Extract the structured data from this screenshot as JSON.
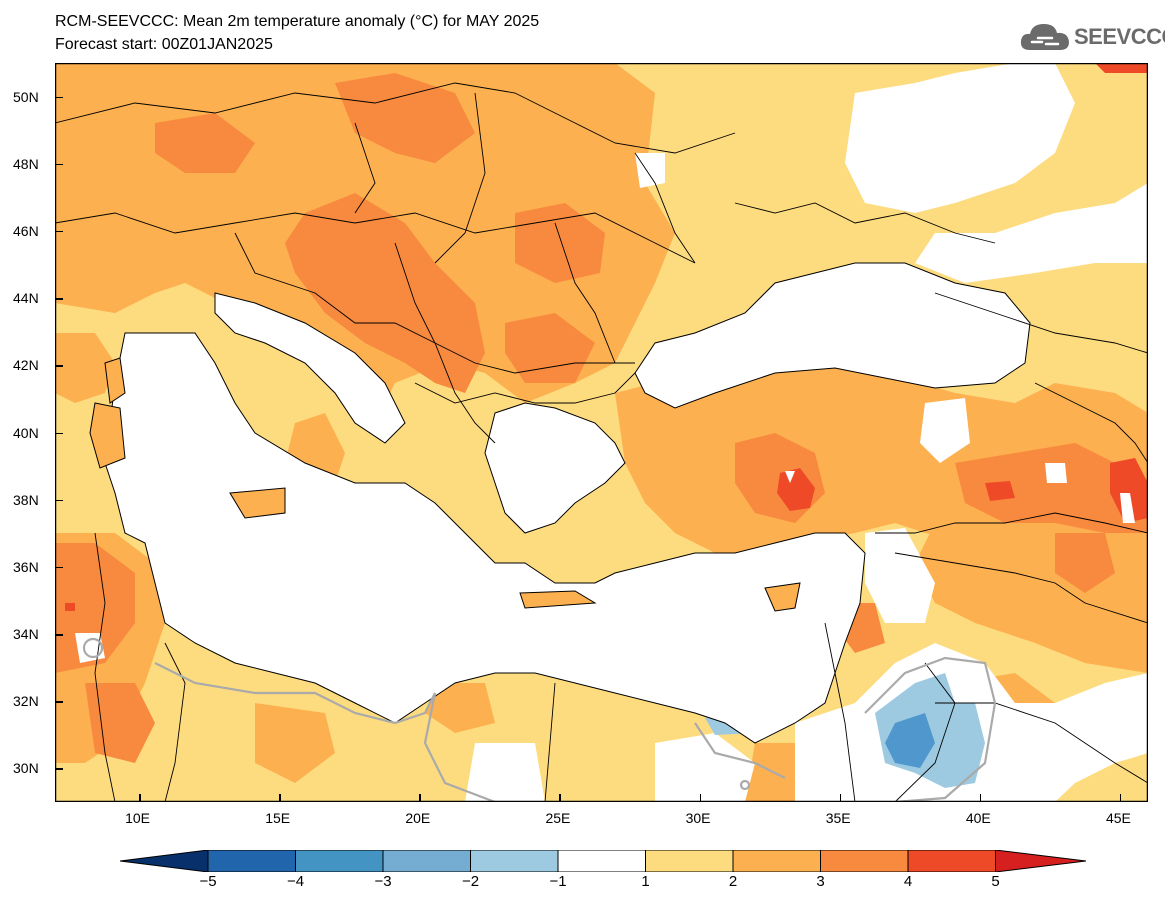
{
  "header": {
    "title": "RCM-SEEVCCC: Mean 2m temperature anomaly (°C) for MAY 2025",
    "subtitle": "Forecast start: 00Z01JAN2025"
  },
  "logo": {
    "text": "SEEVCCC",
    "icon": "cloud-icon"
  },
  "map": {
    "lon_range": [
      7,
      46
    ],
    "lat_range": [
      29,
      51
    ],
    "lat_ticks": [
      "50N",
      "48N",
      "46N",
      "44N",
      "42N",
      "40N",
      "38N",
      "36N",
      "34N",
      "32N",
      "30N"
    ],
    "lon_ticks": [
      "10E",
      "15E",
      "20E",
      "25E",
      "30E",
      "35E",
      "40E",
      "45E"
    ],
    "colors": {
      "land_anomaly_1_2": "#fddb7f",
      "land_anomaly_2_3": "#fdb04f",
      "land_anomaly_3_4": "#f78a3f",
      "land_anomaly_4_5": "#ef4a28",
      "negative_anomaly": "#9ecae3",
      "negative_anomaly_strong": "#4f97cc",
      "sea": "#ffffff",
      "borders": "#000000",
      "zero_contour": "#aaaaaa"
    }
  },
  "colorbar": {
    "labels": [
      "-5",
      "-4",
      "-3",
      "-2",
      "-1",
      "1",
      "2",
      "3",
      "4",
      "5"
    ],
    "colors": [
      "#08306b",
      "#2166ac",
      "#4393c3",
      "#74add1",
      "#9ecae1",
      "#ffffff",
      "#fddb7f",
      "#fdb04f",
      "#f78a3f",
      "#ef4a28",
      "#d61f1f"
    ]
  }
}
